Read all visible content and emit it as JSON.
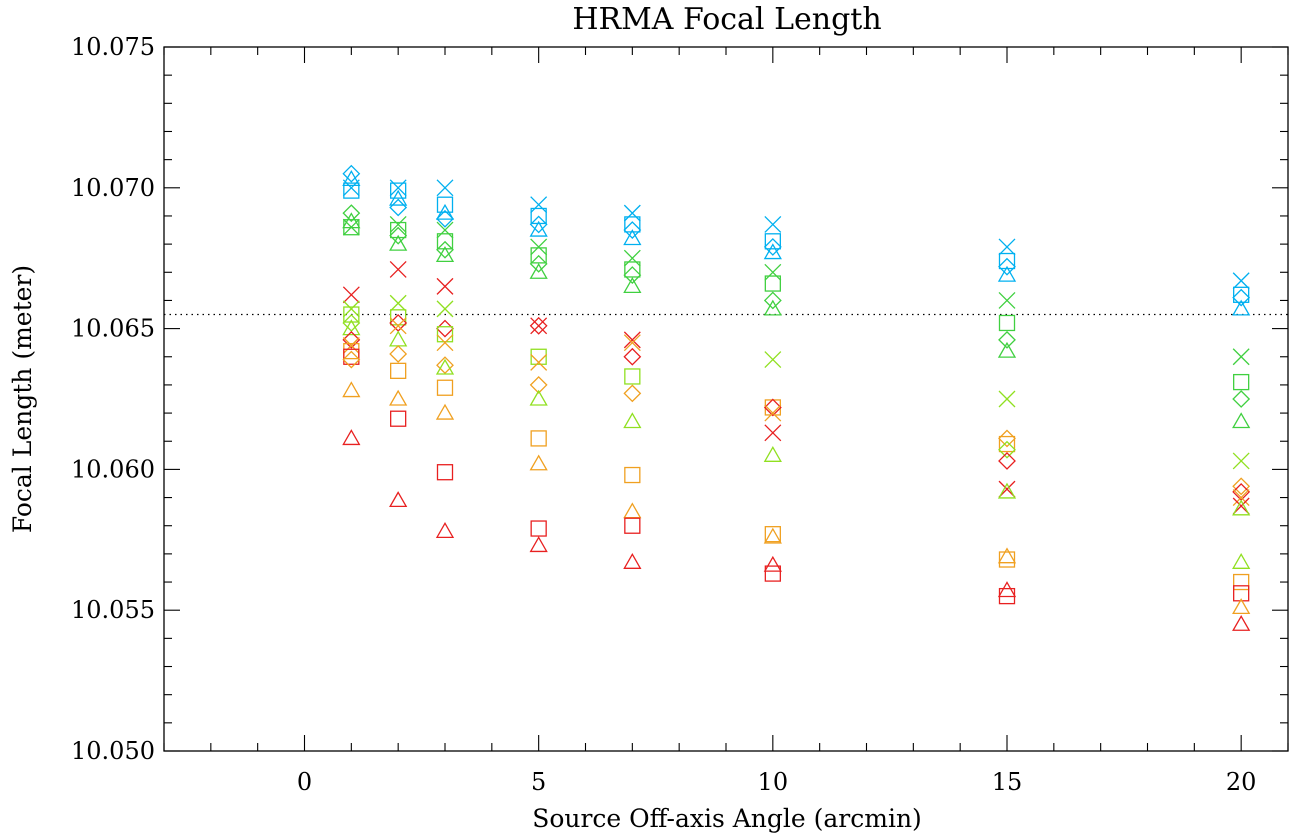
{
  "chart_data": {
    "type": "scatter",
    "title": "HRMA Focal Length",
    "xlabel": "Source Off-axis Angle (arcmin)",
    "ylabel": "Focal Length (meter)",
    "xlim": [
      -3.0,
      21.0
    ],
    "ylim": [
      10.05,
      10.075
    ],
    "x_ticks": [
      0,
      5,
      10,
      15,
      20
    ],
    "x_tick_labels": [
      "0",
      "5",
      "10",
      "15",
      "20"
    ],
    "x_minor_step": 1,
    "y_ticks": [
      10.05,
      10.055,
      10.06,
      10.065,
      10.07,
      10.075
    ],
    "y_tick_labels": [
      "10.050",
      "10.055",
      "10.060",
      "10.065",
      "10.070",
      "10.075"
    ],
    "y_minor_step": 0.001,
    "grid": false,
    "reference_line": {
      "y": 10.0655,
      "style": "dotted"
    },
    "points": [
      {
        "x": 1,
        "y": 10.0705,
        "marker": "diamond",
        "color": "#00b0f0"
      },
      {
        "x": 1,
        "y": 10.0703,
        "marker": "triangle",
        "color": "#00b0f0"
      },
      {
        "x": 1,
        "y": 10.07,
        "marker": "x",
        "color": "#00b0f0"
      },
      {
        "x": 1,
        "y": 10.0699,
        "marker": "square",
        "color": "#00b0f0"
      },
      {
        "x": 1,
        "y": 10.0691,
        "marker": "diamond",
        "color": "#40d040"
      },
      {
        "x": 1,
        "y": 10.0688,
        "marker": "triangle",
        "color": "#40d040"
      },
      {
        "x": 1,
        "y": 10.0686,
        "marker": "square",
        "color": "#40d040"
      },
      {
        "x": 1,
        "y": 10.0686,
        "marker": "x",
        "color": "#40d040"
      },
      {
        "x": 1,
        "y": 10.0662,
        "marker": "x",
        "color": "#e82020"
      },
      {
        "x": 1,
        "y": 10.0657,
        "marker": "x",
        "color": "#90e020"
      },
      {
        "x": 1,
        "y": 10.0655,
        "marker": "square",
        "color": "#90e020"
      },
      {
        "x": 1,
        "y": 10.0652,
        "marker": "diamond",
        "color": "#90e020"
      },
      {
        "x": 1,
        "y": 10.065,
        "marker": "triangle",
        "color": "#90e020"
      },
      {
        "x": 1,
        "y": 10.0646,
        "marker": "diamond",
        "color": "#e82020"
      },
      {
        "x": 1,
        "y": 10.0644,
        "marker": "x",
        "color": "#f0a020"
      },
      {
        "x": 1,
        "y": 10.0642,
        "marker": "square",
        "color": "#f0a020"
      },
      {
        "x": 1,
        "y": 10.064,
        "marker": "square",
        "color": "#e82020"
      },
      {
        "x": 1,
        "y": 10.0639,
        "marker": "diamond",
        "color": "#f0a020"
      },
      {
        "x": 1,
        "y": 10.0628,
        "marker": "triangle",
        "color": "#f0a020"
      },
      {
        "x": 1,
        "y": 10.0611,
        "marker": "triangle",
        "color": "#e82020"
      },
      {
        "x": 2,
        "y": 10.07,
        "marker": "x",
        "color": "#00b0f0"
      },
      {
        "x": 2,
        "y": 10.0699,
        "marker": "square",
        "color": "#00b0f0"
      },
      {
        "x": 2,
        "y": 10.0696,
        "marker": "triangle",
        "color": "#00b0f0"
      },
      {
        "x": 2,
        "y": 10.0693,
        "marker": "diamond",
        "color": "#00b0f0"
      },
      {
        "x": 2,
        "y": 10.0687,
        "marker": "x",
        "color": "#40d040"
      },
      {
        "x": 2,
        "y": 10.0685,
        "marker": "square",
        "color": "#40d040"
      },
      {
        "x": 2,
        "y": 10.0683,
        "marker": "diamond",
        "color": "#40d040"
      },
      {
        "x": 2,
        "y": 10.068,
        "marker": "triangle",
        "color": "#40d040"
      },
      {
        "x": 2,
        "y": 10.0671,
        "marker": "x",
        "color": "#e82020"
      },
      {
        "x": 2,
        "y": 10.0659,
        "marker": "x",
        "color": "#90e020"
      },
      {
        "x": 2,
        "y": 10.0654,
        "marker": "square",
        "color": "#90e020"
      },
      {
        "x": 2,
        "y": 10.0652,
        "marker": "diamond",
        "color": "#e82020"
      },
      {
        "x": 2,
        "y": 10.0651,
        "marker": "x",
        "color": "#f0a020"
      },
      {
        "x": 2,
        "y": 10.0646,
        "marker": "triangle",
        "color": "#90e020"
      },
      {
        "x": 2,
        "y": 10.0641,
        "marker": "diamond",
        "color": "#f0a020"
      },
      {
        "x": 2,
        "y": 10.0635,
        "marker": "square",
        "color": "#f0a020"
      },
      {
        "x": 2,
        "y": 10.0625,
        "marker": "triangle",
        "color": "#f0a020"
      },
      {
        "x": 2,
        "y": 10.0618,
        "marker": "square",
        "color": "#e82020"
      },
      {
        "x": 2,
        "y": 10.0589,
        "marker": "triangle",
        "color": "#e82020"
      },
      {
        "x": 3,
        "y": 10.07,
        "marker": "x",
        "color": "#00b0f0"
      },
      {
        "x": 3,
        "y": 10.0694,
        "marker": "square",
        "color": "#00b0f0"
      },
      {
        "x": 3,
        "y": 10.0691,
        "marker": "triangle",
        "color": "#00b0f0"
      },
      {
        "x": 3,
        "y": 10.0689,
        "marker": "diamond",
        "color": "#00b0f0"
      },
      {
        "x": 3,
        "y": 10.0685,
        "marker": "x",
        "color": "#40d040"
      },
      {
        "x": 3,
        "y": 10.0681,
        "marker": "square",
        "color": "#40d040"
      },
      {
        "x": 3,
        "y": 10.0678,
        "marker": "diamond",
        "color": "#40d040"
      },
      {
        "x": 3,
        "y": 10.0676,
        "marker": "triangle",
        "color": "#40d040"
      },
      {
        "x": 3,
        "y": 10.0665,
        "marker": "x",
        "color": "#e82020"
      },
      {
        "x": 3,
        "y": 10.0657,
        "marker": "x",
        "color": "#90e020"
      },
      {
        "x": 3,
        "y": 10.065,
        "marker": "diamond",
        "color": "#e82020"
      },
      {
        "x": 3,
        "y": 10.0648,
        "marker": "square",
        "color": "#90e020"
      },
      {
        "x": 3,
        "y": 10.0645,
        "marker": "x",
        "color": "#f0a020"
      },
      {
        "x": 3,
        "y": 10.0637,
        "marker": "diamond",
        "color": "#f0a020"
      },
      {
        "x": 3,
        "y": 10.0636,
        "marker": "triangle",
        "color": "#90e020"
      },
      {
        "x": 3,
        "y": 10.0629,
        "marker": "square",
        "color": "#f0a020"
      },
      {
        "x": 3,
        "y": 10.062,
        "marker": "triangle",
        "color": "#f0a020"
      },
      {
        "x": 3,
        "y": 10.0599,
        "marker": "square",
        "color": "#e82020"
      },
      {
        "x": 3,
        "y": 10.0578,
        "marker": "triangle",
        "color": "#e82020"
      },
      {
        "x": 5,
        "y": 10.0694,
        "marker": "x",
        "color": "#00b0f0"
      },
      {
        "x": 5,
        "y": 10.069,
        "marker": "square",
        "color": "#00b0f0"
      },
      {
        "x": 5,
        "y": 10.0687,
        "marker": "diamond",
        "color": "#00b0f0"
      },
      {
        "x": 5,
        "y": 10.0685,
        "marker": "triangle",
        "color": "#00b0f0"
      },
      {
        "x": 5,
        "y": 10.0679,
        "marker": "x",
        "color": "#40d040"
      },
      {
        "x": 5,
        "y": 10.0676,
        "marker": "square",
        "color": "#40d040"
      },
      {
        "x": 5,
        "y": 10.0673,
        "marker": "diamond",
        "color": "#40d040"
      },
      {
        "x": 5,
        "y": 10.067,
        "marker": "triangle",
        "color": "#40d040"
      },
      {
        "x": 5,
        "y": 10.0651,
        "marker": "x",
        "color": "#e82020"
      },
      {
        "x": 5,
        "y": 10.0651,
        "marker": "diamond",
        "color": "#e82020"
      },
      {
        "x": 5,
        "y": 10.064,
        "marker": "square",
        "color": "#90e020"
      },
      {
        "x": 5,
        "y": 10.0638,
        "marker": "x",
        "color": "#f0a020"
      },
      {
        "x": 5,
        "y": 10.063,
        "marker": "diamond",
        "color": "#f0a020"
      },
      {
        "x": 5,
        "y": 10.0625,
        "marker": "triangle",
        "color": "#90e020"
      },
      {
        "x": 5,
        "y": 10.0611,
        "marker": "square",
        "color": "#f0a020"
      },
      {
        "x": 5,
        "y": 10.0602,
        "marker": "triangle",
        "color": "#f0a020"
      },
      {
        "x": 5,
        "y": 10.0579,
        "marker": "square",
        "color": "#e82020"
      },
      {
        "x": 5,
        "y": 10.0573,
        "marker": "triangle",
        "color": "#e82020"
      },
      {
        "x": 7,
        "y": 10.0691,
        "marker": "x",
        "color": "#00b0f0"
      },
      {
        "x": 7,
        "y": 10.0687,
        "marker": "square",
        "color": "#00b0f0"
      },
      {
        "x": 7,
        "y": 10.0685,
        "marker": "diamond",
        "color": "#00b0f0"
      },
      {
        "x": 7,
        "y": 10.0682,
        "marker": "triangle",
        "color": "#00b0f0"
      },
      {
        "x": 7,
        "y": 10.0675,
        "marker": "x",
        "color": "#40d040"
      },
      {
        "x": 7,
        "y": 10.0671,
        "marker": "square",
        "color": "#40d040"
      },
      {
        "x": 7,
        "y": 10.0669,
        "marker": "diamond",
        "color": "#40d040"
      },
      {
        "x": 7,
        "y": 10.0665,
        "marker": "triangle",
        "color": "#40d040"
      },
      {
        "x": 7,
        "y": 10.0646,
        "marker": "x",
        "color": "#e82020"
      },
      {
        "x": 7,
        "y": 10.0645,
        "marker": "x",
        "color": "#f0a020"
      },
      {
        "x": 7,
        "y": 10.064,
        "marker": "diamond",
        "color": "#e82020"
      },
      {
        "x": 7,
        "y": 10.0633,
        "marker": "square",
        "color": "#90e020"
      },
      {
        "x": 7,
        "y": 10.0627,
        "marker": "diamond",
        "color": "#f0a020"
      },
      {
        "x": 7,
        "y": 10.0617,
        "marker": "triangle",
        "color": "#90e020"
      },
      {
        "x": 7,
        "y": 10.0598,
        "marker": "square",
        "color": "#f0a020"
      },
      {
        "x": 7,
        "y": 10.0585,
        "marker": "triangle",
        "color": "#f0a020"
      },
      {
        "x": 7,
        "y": 10.058,
        "marker": "square",
        "color": "#e82020"
      },
      {
        "x": 7,
        "y": 10.0567,
        "marker": "triangle",
        "color": "#e82020"
      },
      {
        "x": 10,
        "y": 10.0687,
        "marker": "x",
        "color": "#00b0f0"
      },
      {
        "x": 10,
        "y": 10.0681,
        "marker": "square",
        "color": "#00b0f0"
      },
      {
        "x": 10,
        "y": 10.0679,
        "marker": "diamond",
        "color": "#00b0f0"
      },
      {
        "x": 10,
        "y": 10.0677,
        "marker": "triangle",
        "color": "#00b0f0"
      },
      {
        "x": 10,
        "y": 10.067,
        "marker": "x",
        "color": "#40d040"
      },
      {
        "x": 10,
        "y": 10.0666,
        "marker": "square",
        "color": "#40d040"
      },
      {
        "x": 10,
        "y": 10.066,
        "marker": "diamond",
        "color": "#40d040"
      },
      {
        "x": 10,
        "y": 10.0657,
        "marker": "triangle",
        "color": "#40d040"
      },
      {
        "x": 10,
        "y": 10.0639,
        "marker": "x",
        "color": "#90e020"
      },
      {
        "x": 10,
        "y": 10.0622,
        "marker": "square",
        "color": "#f0a020"
      },
      {
        "x": 10,
        "y": 10.0622,
        "marker": "diamond",
        "color": "#e82020"
      },
      {
        "x": 10,
        "y": 10.062,
        "marker": "x",
        "color": "#f0a020"
      },
      {
        "x": 10,
        "y": 10.0613,
        "marker": "x",
        "color": "#e82020"
      },
      {
        "x": 10,
        "y": 10.0605,
        "marker": "triangle",
        "color": "#90e020"
      },
      {
        "x": 10,
        "y": 10.0577,
        "marker": "square",
        "color": "#f0a020"
      },
      {
        "x": 10,
        "y": 10.0576,
        "marker": "triangle",
        "color": "#f0a020"
      },
      {
        "x": 10,
        "y": 10.0566,
        "marker": "triangle",
        "color": "#e82020"
      },
      {
        "x": 10,
        "y": 10.0563,
        "marker": "square",
        "color": "#e82020"
      },
      {
        "x": 15,
        "y": 10.0679,
        "marker": "x",
        "color": "#00b0f0"
      },
      {
        "x": 15,
        "y": 10.0674,
        "marker": "square",
        "color": "#00b0f0"
      },
      {
        "x": 15,
        "y": 10.0672,
        "marker": "diamond",
        "color": "#00b0f0"
      },
      {
        "x": 15,
        "y": 10.0669,
        "marker": "triangle",
        "color": "#00b0f0"
      },
      {
        "x": 15,
        "y": 10.066,
        "marker": "x",
        "color": "#40d040"
      },
      {
        "x": 15,
        "y": 10.0652,
        "marker": "square",
        "color": "#40d040"
      },
      {
        "x": 15,
        "y": 10.0646,
        "marker": "diamond",
        "color": "#40d040"
      },
      {
        "x": 15,
        "y": 10.0642,
        "marker": "triangle",
        "color": "#40d040"
      },
      {
        "x": 15,
        "y": 10.0625,
        "marker": "x",
        "color": "#90e020"
      },
      {
        "x": 15,
        "y": 10.0611,
        "marker": "diamond",
        "color": "#f0a020"
      },
      {
        "x": 15,
        "y": 10.0609,
        "marker": "square",
        "color": "#f0a020"
      },
      {
        "x": 15,
        "y": 10.0607,
        "marker": "diamond",
        "color": "#90e020"
      },
      {
        "x": 15,
        "y": 10.0603,
        "marker": "diamond",
        "color": "#e82020"
      },
      {
        "x": 15,
        "y": 10.0593,
        "marker": "x",
        "color": "#e82020"
      },
      {
        "x": 15,
        "y": 10.0592,
        "marker": "triangle",
        "color": "#90e020"
      },
      {
        "x": 15,
        "y": 10.0569,
        "marker": "triangle",
        "color": "#f0a020"
      },
      {
        "x": 15,
        "y": 10.0568,
        "marker": "square",
        "color": "#f0a020"
      },
      {
        "x": 15,
        "y": 10.0557,
        "marker": "triangle",
        "color": "#e82020"
      },
      {
        "x": 15,
        "y": 10.0555,
        "marker": "square",
        "color": "#e82020"
      },
      {
        "x": 20,
        "y": 10.0667,
        "marker": "x",
        "color": "#00b0f0"
      },
      {
        "x": 20,
        "y": 10.0662,
        "marker": "square",
        "color": "#00b0f0"
      },
      {
        "x": 20,
        "y": 10.0661,
        "marker": "diamond",
        "color": "#00b0f0"
      },
      {
        "x": 20,
        "y": 10.0657,
        "marker": "triangle",
        "color": "#00b0f0"
      },
      {
        "x": 20,
        "y": 10.064,
        "marker": "x",
        "color": "#40d040"
      },
      {
        "x": 20,
        "y": 10.0631,
        "marker": "square",
        "color": "#40d040"
      },
      {
        "x": 20,
        "y": 10.0625,
        "marker": "diamond",
        "color": "#40d040"
      },
      {
        "x": 20,
        "y": 10.0617,
        "marker": "triangle",
        "color": "#40d040"
      },
      {
        "x": 20,
        "y": 10.0603,
        "marker": "x",
        "color": "#90e020"
      },
      {
        "x": 20,
        "y": 10.0594,
        "marker": "diamond",
        "color": "#f0a020"
      },
      {
        "x": 20,
        "y": 10.0592,
        "marker": "diamond",
        "color": "#e82020"
      },
      {
        "x": 20,
        "y": 10.059,
        "marker": "x",
        "color": "#f0a020"
      },
      {
        "x": 20,
        "y": 10.0587,
        "marker": "x",
        "color": "#e82020"
      },
      {
        "x": 20,
        "y": 10.0586,
        "marker": "triangle",
        "color": "#90e020"
      },
      {
        "x": 20,
        "y": 10.0567,
        "marker": "triangle",
        "color": "#90e020"
      },
      {
        "x": 20,
        "y": 10.056,
        "marker": "square",
        "color": "#f0a020"
      },
      {
        "x": 20,
        "y": 10.0556,
        "marker": "square",
        "color": "#e82020"
      },
      {
        "x": 20,
        "y": 10.0551,
        "marker": "triangle",
        "color": "#f0a020"
      },
      {
        "x": 20,
        "y": 10.0545,
        "marker": "triangle",
        "color": "#e82020"
      }
    ]
  }
}
